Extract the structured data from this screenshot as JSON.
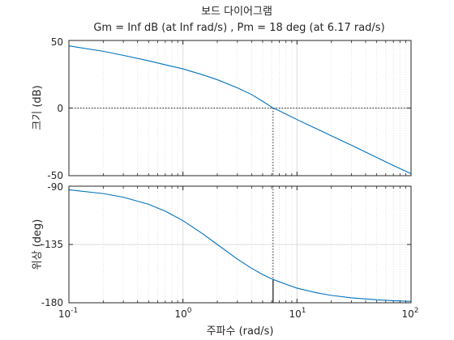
{
  "chart_data": [
    {
      "type": "line",
      "title": "보드 다이어그램",
      "subtitle": "Gm = Inf dB (at Inf rad/s) ,  Pm = 18 deg (at 6.17 rad/s)",
      "ylabel": "크기 (dB)",
      "xlabel": "",
      "xscale": "log",
      "xlim": [
        0.1,
        100
      ],
      "ylim": [
        -50,
        50
      ],
      "yticks": [
        "50",
        "0",
        "-50"
      ],
      "grid": true,
      "reference_line_y": 0,
      "crossover_x": 6.17,
      "series": [
        {
          "color": "#0072BD",
          "x": [
            0.1,
            0.2,
            0.3,
            0.5,
            0.7,
            1.0,
            1.5,
            2.0,
            3.0,
            4.0,
            5.0,
            6.17,
            7.0,
            8.0,
            10.0,
            15.0,
            20.0,
            30.0,
            50.0,
            70.0,
            100.0
          ],
          "y": [
            46.0,
            42.0,
            39.0,
            35.0,
            32.0,
            29.0,
            24.5,
            21.0,
            15.0,
            10.0,
            5.0,
            0.0,
            -2.0,
            -4.5,
            -8.5,
            -15.5,
            -20.5,
            -27.5,
            -36.5,
            -42.5,
            -48.5
          ]
        }
      ]
    },
    {
      "type": "line",
      "title": "",
      "ylabel": "위상 (deg)",
      "xlabel": "주파수  (rad/s)",
      "xscale": "log",
      "xlim": [
        0.1,
        100
      ],
      "ylim": [
        -180,
        -90
      ],
      "yticks": [
        "-90",
        "-135",
        "-180"
      ],
      "xticks": [
        "10",
        "10",
        "10",
        "10"
      ],
      "xtick_exponents": [
        "-1",
        "0",
        "1",
        "2"
      ],
      "grid": true,
      "reference_line_y": -180,
      "crossover_x": 6.17,
      "phase_margin_deg": 18,
      "series": [
        {
          "color": "#0072BD",
          "x": [
            0.1,
            0.2,
            0.3,
            0.5,
            0.7,
            1.0,
            1.5,
            2.0,
            3.0,
            4.0,
            5.0,
            6.17,
            8.0,
            10.0,
            15.0,
            20.0,
            30.0,
            50.0,
            70.0,
            100.0
          ],
          "y": [
            -92.8,
            -95.7,
            -98.5,
            -104.0,
            -109.3,
            -116.6,
            -126.9,
            -135.0,
            -146.3,
            -153.4,
            -158.2,
            -162.0,
            -165.7,
            -168.7,
            -172.4,
            -174.3,
            -176.2,
            -177.7,
            -178.4,
            -178.9
          ]
        }
      ]
    }
  ]
}
